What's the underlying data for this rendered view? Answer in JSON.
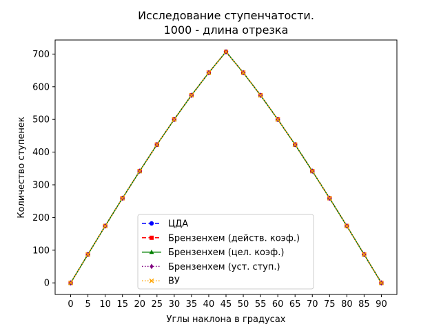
{
  "chart_data": {
    "type": "line",
    "title": "Исследование ступенчатости.",
    "subtitle": "1000 - длина отрезка",
    "xlabel": "Углы наклона в градусах",
    "ylabel": "Количество ступенек",
    "xlim": [
      -4.5,
      94.5
    ],
    "ylim": [
      -35.4,
      743.0
    ],
    "xticks": [
      0,
      5,
      10,
      15,
      20,
      25,
      30,
      35,
      40,
      45,
      50,
      55,
      60,
      65,
      70,
      75,
      80,
      85,
      90
    ],
    "yticks": [
      0,
      100,
      200,
      300,
      400,
      500,
      600,
      700
    ],
    "x": [
      0,
      5,
      10,
      15,
      20,
      25,
      30,
      35,
      40,
      45,
      50,
      55,
      60,
      65,
      70,
      75,
      80,
      85,
      90
    ],
    "grid": false,
    "legend_position": "lower-center",
    "series": [
      {
        "name": "ЦДА",
        "color": "#0000ff",
        "linestyle": "dashed",
        "marker": "circle",
        "values": [
          0,
          87,
          174,
          259,
          342,
          423,
          500,
          574,
          643,
          707,
          643,
          574,
          500,
          423,
          342,
          259,
          174,
          87,
          0
        ]
      },
      {
        "name": "Брензенхем (действ. коэф.)",
        "color": "#ff0000",
        "linestyle": "dashed",
        "marker": "square",
        "values": [
          0,
          87,
          174,
          259,
          342,
          423,
          500,
          574,
          643,
          707,
          643,
          574,
          500,
          423,
          342,
          259,
          174,
          87,
          0
        ]
      },
      {
        "name": "Брензенхем (цел. коэф.)",
        "color": "#008000",
        "linestyle": "solid",
        "marker": "triangle",
        "values": [
          0,
          87,
          174,
          259,
          342,
          423,
          500,
          574,
          643,
          707,
          643,
          574,
          500,
          423,
          342,
          259,
          174,
          87,
          0
        ]
      },
      {
        "name": "Брензенхем (уст. ступ.)",
        "color": "#800080",
        "linestyle": "dotted",
        "marker": "diamond",
        "values": [
          0,
          87,
          174,
          259,
          342,
          423,
          500,
          574,
          643,
          707,
          643,
          574,
          500,
          423,
          342,
          259,
          174,
          87,
          0
        ]
      },
      {
        "name": "ВУ",
        "color": "#ffa500",
        "linestyle": "dotted",
        "marker": "x",
        "values": [
          0,
          87,
          174,
          259,
          342,
          423,
          500,
          574,
          643,
          707,
          643,
          574,
          500,
          423,
          342,
          259,
          174,
          87,
          0
        ]
      }
    ]
  }
}
